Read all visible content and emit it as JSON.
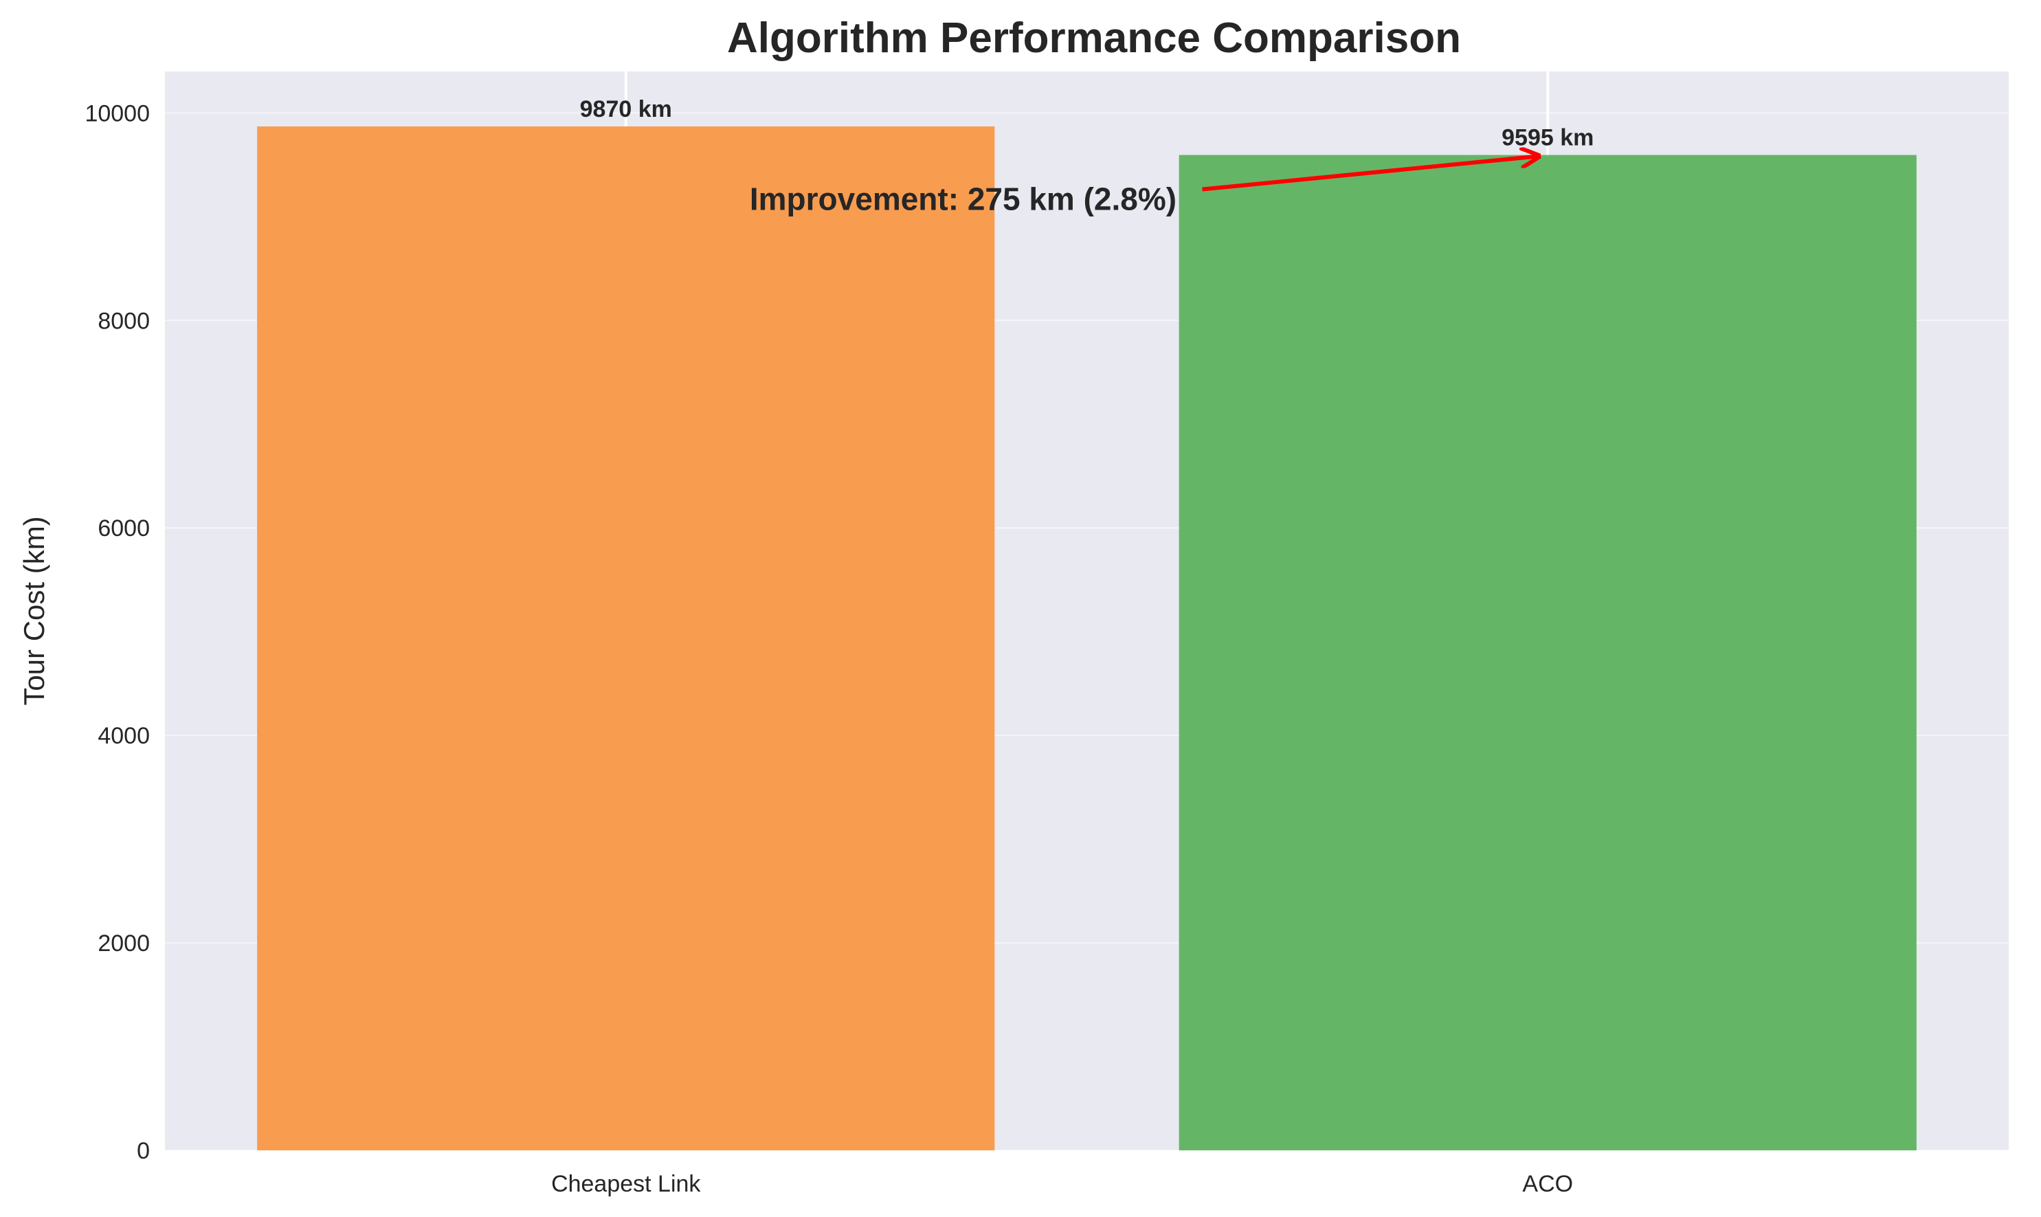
{
  "chart_data": {
    "type": "bar",
    "title": "Algorithm Performance Comparison",
    "xlabel": "",
    "ylabel": "Tour Cost (km)",
    "categories": [
      "Cheapest Link",
      "ACO"
    ],
    "values": [
      9870,
      9595
    ],
    "bar_labels": [
      "9870 km",
      "9595 km"
    ],
    "colors": [
      "#f89c50",
      "#64b666"
    ],
    "ylim": [
      0,
      10400
    ],
    "yticks": [
      0,
      2000,
      4000,
      6000,
      8000,
      10000
    ],
    "grid": true,
    "background": "#e8e9f1",
    "annotation": {
      "text": "Improvement: 275 km (2.8%)",
      "color": "#ff0000",
      "points_to_category": "ACO",
      "points_to_value": 9595
    }
  }
}
